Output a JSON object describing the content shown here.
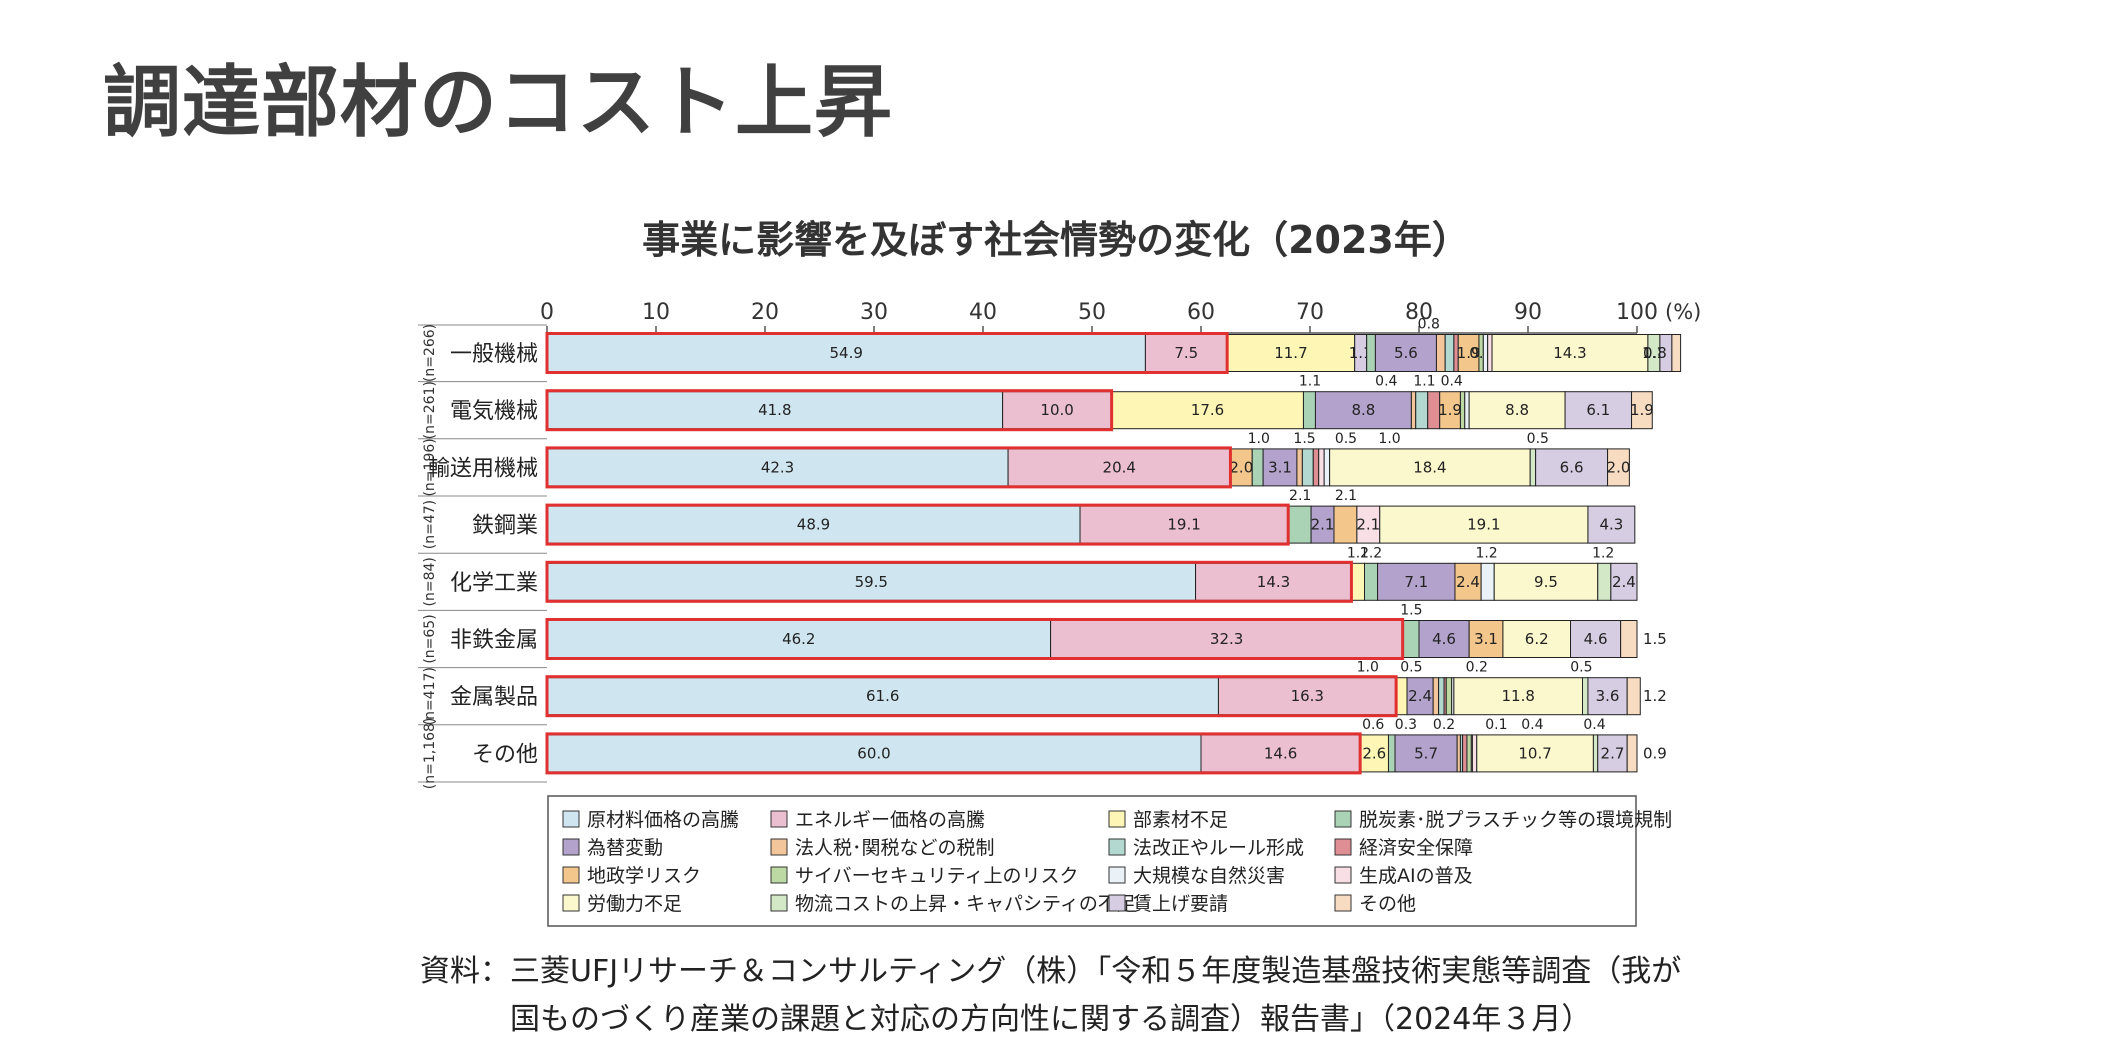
{
  "slide_title": "調達部材のコスト上昇",
  "source_line1": "資料：三菱UFJリサーチ＆コンサルティング（株）「令和５年度製造基盤技術実態等調査（我が",
  "source_line2": "国ものづくり産業の課題と対応の方向性に関する調査）報告書」（2024年３月）",
  "chart_data": {
    "type": "bar",
    "orientation": "horizontal-stacked",
    "title": "事業に影響を及ぼす社会情勢の変化（2023年）",
    "x_ticks": [
      "0",
      "10",
      "20",
      "30",
      "40",
      "50",
      "60",
      "70",
      "80",
      "90",
      "100"
    ],
    "x_unit": "(%)",
    "xlim": [
      0,
      100
    ],
    "highlight": "原材料価格の高騰 + エネルギー価格の高騰",
    "categories": [
      {
        "label": "一般機械",
        "n": "(n=266)",
        "segments": [
          [
            0,
            54.9,
            "54.9"
          ],
          [
            1,
            7.5,
            "7.5"
          ],
          [
            2,
            11.7,
            "11.7"
          ],
          [
            14,
            1.1,
            "1.1"
          ],
          [
            3,
            0.8,
            ""
          ],
          [
            4,
            5.6,
            "5.6"
          ],
          [
            5,
            0.8,
            ""
          ],
          [
            6,
            0.8,
            ""
          ],
          [
            7,
            0.4,
            ""
          ],
          [
            8,
            1.9,
            "1.9"
          ],
          [
            9,
            0.4,
            "0.4"
          ],
          [
            10,
            0.4,
            ""
          ],
          [
            11,
            0.4,
            ""
          ],
          [
            12,
            14.3,
            "14.3"
          ],
          [
            13,
            1.1,
            "1.1"
          ],
          [
            14,
            1.1,
            ""
          ],
          [
            15,
            0.8,
            ""
          ]
        ],
        "annotations": [
          {
            "text": "0.8",
            "at": 80.9
          }
        ],
        "right_label": "0.8"
      },
      {
        "label": "電気機械",
        "n": "(n=261)",
        "segments": [
          [
            0,
            41.8,
            "41.8"
          ],
          [
            1,
            10.0,
            "10.0"
          ],
          [
            2,
            17.6,
            "17.6"
          ],
          [
            3,
            1.1,
            ""
          ],
          [
            4,
            8.8,
            "8.8"
          ],
          [
            5,
            0.4,
            ""
          ],
          [
            6,
            1.1,
            ""
          ],
          [
            7,
            1.1,
            ""
          ],
          [
            8,
            1.9,
            "1.9"
          ],
          [
            9,
            0.4,
            ""
          ],
          [
            10,
            0.4,
            ""
          ],
          [
            12,
            8.8,
            "8.8"
          ],
          [
            14,
            6.1,
            "6.1"
          ],
          [
            15,
            1.9,
            "1.9"
          ]
        ],
        "annotations": [
          {
            "text": "1.1",
            "at": 70.0
          },
          {
            "text": "0.4",
            "at": 77.0
          },
          {
            "text": "1.1",
            "at": 80.5
          },
          {
            "text": "0.4",
            "at": 83.0
          }
        ],
        "right_label": ""
      },
      {
        "label": "輸送用機械",
        "n": "(n=196)",
        "segments": [
          [
            0,
            42.3,
            "42.3"
          ],
          [
            1,
            20.4,
            "20.4"
          ],
          [
            8,
            2.0,
            "2.0"
          ],
          [
            3,
            1.0,
            ""
          ],
          [
            4,
            3.1,
            "3.1"
          ],
          [
            5,
            0.5,
            ""
          ],
          [
            6,
            1.0,
            ""
          ],
          [
            7,
            0.5,
            ""
          ],
          [
            11,
            0.5,
            ""
          ],
          [
            10,
            0.5,
            ""
          ],
          [
            12,
            18.4,
            "18.4"
          ],
          [
            13,
            0.5,
            ""
          ],
          [
            14,
            6.6,
            "6.6"
          ],
          [
            15,
            2.0,
            "2.0"
          ]
        ],
        "annotations": [
          {
            "text": "1.0",
            "at": 65.3
          },
          {
            "text": "1.5",
            "at": 69.5
          },
          {
            "text": "0.5",
            "at": 73.3
          },
          {
            "text": "1.0",
            "at": 77.3
          },
          {
            "text": "0.5",
            "at": 90.9
          }
        ],
        "right_label": ""
      },
      {
        "label": "鉄鋼業",
        "n": "(n=47)",
        "segments": [
          [
            0,
            48.9,
            "48.9"
          ],
          [
            1,
            19.1,
            "19.1"
          ],
          [
            3,
            2.1,
            ""
          ],
          [
            4,
            2.1,
            "2.1"
          ],
          [
            8,
            2.1,
            ""
          ],
          [
            11,
            2.1,
            "2.1"
          ],
          [
            12,
            19.1,
            "19.1"
          ],
          [
            14,
            4.3,
            "4.3"
          ]
        ],
        "annotations": [
          {
            "text": "2.1",
            "at": 69.1
          },
          {
            "text": "2.1",
            "at": 73.3
          }
        ],
        "right_label": ""
      },
      {
        "label": "化学工業",
        "n": "(n=84)",
        "segments": [
          [
            0,
            59.5,
            "59.5"
          ],
          [
            1,
            14.3,
            "14.3"
          ],
          [
            2,
            1.2,
            ""
          ],
          [
            3,
            1.2,
            ""
          ],
          [
            4,
            7.1,
            "7.1"
          ],
          [
            8,
            2.4,
            "2.4"
          ],
          [
            10,
            1.2,
            ""
          ],
          [
            12,
            9.5,
            "9.5"
          ],
          [
            13,
            1.2,
            ""
          ],
          [
            14,
            2.4,
            "2.4"
          ]
        ],
        "annotations": [
          {
            "text": "1.2",
            "at": 74.4
          },
          {
            "text": "1.2",
            "at": 75.6
          },
          {
            "text": "1.2",
            "at": 86.2
          },
          {
            "text": "1.2",
            "at": 96.9
          }
        ],
        "right_label": ""
      },
      {
        "label": "非鉄金属",
        "n": "(n=65)",
        "segments": [
          [
            0,
            46.2,
            "46.2"
          ],
          [
            1,
            32.3,
            "32.3"
          ],
          [
            3,
            1.5,
            ""
          ],
          [
            4,
            4.6,
            "4.6"
          ],
          [
            8,
            3.1,
            "3.1"
          ],
          [
            12,
            6.2,
            "6.2"
          ],
          [
            14,
            4.6,
            "4.6"
          ],
          [
            15,
            1.5,
            ""
          ]
        ],
        "annotations": [
          {
            "text": "1.5",
            "at": 79.3
          }
        ],
        "right_label": "1.5"
      },
      {
        "label": "金属製品",
        "n": "(n=417)",
        "segments": [
          [
            0,
            61.6,
            "61.6"
          ],
          [
            1,
            16.3,
            "16.3"
          ],
          [
            2,
            1.0,
            ""
          ],
          [
            4,
            2.4,
            "2.4"
          ],
          [
            5,
            0.5,
            ""
          ],
          [
            6,
            0.5,
            ""
          ],
          [
            7,
            0.2,
            ""
          ],
          [
            9,
            0.5,
            ""
          ],
          [
            10,
            0.2,
            ""
          ],
          [
            12,
            11.8,
            "11.8"
          ],
          [
            13,
            0.5,
            ""
          ],
          [
            14,
            3.6,
            "3.6"
          ],
          [
            15,
            1.2,
            ""
          ]
        ],
        "annotations": [
          {
            "text": "1.0",
            "at": 75.3
          },
          {
            "text": "0.5",
            "at": 79.3
          },
          {
            "text": "0.2",
            "at": 85.3
          },
          {
            "text": "0.5",
            "at": 94.9
          }
        ],
        "right_label": "1.2"
      },
      {
        "label": "その他",
        "n": "(n=1,168)",
        "segments": [
          [
            0,
            60.0,
            "60.0"
          ],
          [
            1,
            14.6,
            "14.6"
          ],
          [
            2,
            2.6,
            "2.6"
          ],
          [
            3,
            0.6,
            ""
          ],
          [
            4,
            5.7,
            "5.7"
          ],
          [
            5,
            0.3,
            ""
          ],
          [
            6,
            0.2,
            ""
          ],
          [
            7,
            0.4,
            ""
          ],
          [
            9,
            0.4,
            ""
          ],
          [
            10,
            0.1,
            ""
          ],
          [
            11,
            0.4,
            ""
          ],
          [
            12,
            10.7,
            "10.7"
          ],
          [
            13,
            0.4,
            ""
          ],
          [
            14,
            2.7,
            "2.7"
          ],
          [
            15,
            0.9,
            ""
          ]
        ],
        "annotations": [
          {
            "text": "0.6",
            "at": 75.8
          },
          {
            "text": "0.3",
            "at": 78.8
          },
          {
            "text": "0.2",
            "at": 82.3
          },
          {
            "text": "0.1",
            "at": 87.1
          },
          {
            "text": "0.4",
            "at": 90.4
          },
          {
            "text": "0.4",
            "at": 96.1
          }
        ],
        "right_label": "0.9"
      }
    ],
    "legend": [
      {
        "label": "原材料価格の高騰",
        "color": "#cfe6f0"
      },
      {
        "label": "エネルギー価格の高騰",
        "color": "#ebbfd0"
      },
      {
        "label": "部素材不足",
        "color": "#fdf6b4"
      },
      {
        "label": "脱炭素･脱プラスチック等の環境規制",
        "color": "#a9d3b4"
      },
      {
        "label": "為替変動",
        "color": "#b3a2cc"
      },
      {
        "label": "法人税･関税などの税制",
        "color": "#f2c59a"
      },
      {
        "label": "法改正やルール形成",
        "color": "#b2d8d0"
      },
      {
        "label": "経済安全保障",
        "color": "#df8f94"
      },
      {
        "label": "地政学リスク",
        "color": "#f3c68b"
      },
      {
        "label": "サイバーセキュリティ上のリスク",
        "color": "#bcd9a3"
      },
      {
        "label": "大規模な自然災害",
        "color": "#eaf2f7"
      },
      {
        "label": "生成AIの普及",
        "color": "#f8dfe6"
      },
      {
        "label": "労働力不足",
        "color": "#fcf8cd"
      },
      {
        "label": "物流コストの上昇・キャパシティの不足",
        "color": "#d3e8c7"
      },
      {
        "label": "賃上げ要請",
        "color": "#d6cde3"
      },
      {
        "label": "その他",
        "color": "#f8dcc2"
      }
    ],
    "highlight_color": "#e0302f",
    "grid": false
  }
}
